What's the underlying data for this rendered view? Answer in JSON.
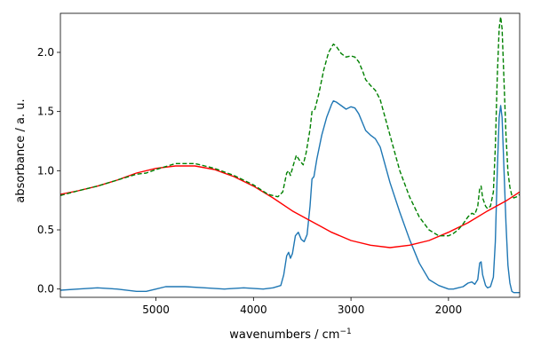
{
  "chart_data": {
    "type": "line",
    "xlabel": "wavenumbers / cm",
    "xlabel_sup": "−1",
    "ylabel": "absorbance / a. u.",
    "xlim": [
      5980,
      1270
    ],
    "ylim": [
      -0.07,
      2.33
    ],
    "x_ticks": [
      {
        "value": 5000,
        "label": "5000"
      },
      {
        "value": 4000,
        "label": "4000"
      },
      {
        "value": 3000,
        "label": "3000"
      },
      {
        "value": 2000,
        "label": "2000"
      }
    ],
    "y_ticks": [
      {
        "value": 0.0,
        "label": "0.0"
      },
      {
        "value": 0.5,
        "label": "0.5"
      },
      {
        "value": 1.0,
        "label": "1.0"
      },
      {
        "value": 1.5,
        "label": "1.5"
      },
      {
        "value": 2.0,
        "label": "2.0"
      }
    ],
    "grid": false,
    "series": [
      {
        "color": "#1f77b4",
        "style": "solid",
        "points": [
          [
            5980,
            -0.01
          ],
          [
            5800,
            0.0
          ],
          [
            5600,
            0.01
          ],
          [
            5400,
            0.0
          ],
          [
            5200,
            -0.02
          ],
          [
            5100,
            -0.02
          ],
          [
            5000,
            0.0
          ],
          [
            4900,
            0.02
          ],
          [
            4700,
            0.02
          ],
          [
            4500,
            0.01
          ],
          [
            4300,
            0.0
          ],
          [
            4100,
            0.01
          ],
          [
            3900,
            0.0
          ],
          [
            3800,
            0.01
          ],
          [
            3720,
            0.03
          ],
          [
            3690,
            0.12
          ],
          [
            3660,
            0.28
          ],
          [
            3640,
            0.31
          ],
          [
            3620,
            0.26
          ],
          [
            3600,
            0.3
          ],
          [
            3570,
            0.45
          ],
          [
            3540,
            0.48
          ],
          [
            3510,
            0.42
          ],
          [
            3480,
            0.4
          ],
          [
            3450,
            0.46
          ],
          [
            3420,
            0.7
          ],
          [
            3400,
            0.93
          ],
          [
            3380,
            0.95
          ],
          [
            3350,
            1.1
          ],
          [
            3300,
            1.3
          ],
          [
            3250,
            1.45
          ],
          [
            3200,
            1.56
          ],
          [
            3180,
            1.59
          ],
          [
            3150,
            1.58
          ],
          [
            3100,
            1.55
          ],
          [
            3050,
            1.52
          ],
          [
            3000,
            1.54
          ],
          [
            2960,
            1.53
          ],
          [
            2920,
            1.48
          ],
          [
            2880,
            1.4
          ],
          [
            2850,
            1.34
          ],
          [
            2800,
            1.3
          ],
          [
            2750,
            1.27
          ],
          [
            2700,
            1.2
          ],
          [
            2650,
            1.05
          ],
          [
            2600,
            0.9
          ],
          [
            2500,
            0.65
          ],
          [
            2400,
            0.42
          ],
          [
            2300,
            0.22
          ],
          [
            2200,
            0.08
          ],
          [
            2100,
            0.03
          ],
          [
            2000,
            0.0
          ],
          [
            1950,
            0.0
          ],
          [
            1900,
            0.01
          ],
          [
            1850,
            0.02
          ],
          [
            1800,
            0.05
          ],
          [
            1760,
            0.06
          ],
          [
            1730,
            0.04
          ],
          [
            1700,
            0.08
          ],
          [
            1680,
            0.22
          ],
          [
            1665,
            0.23
          ],
          [
            1650,
            0.12
          ],
          [
            1620,
            0.03
          ],
          [
            1600,
            0.01
          ],
          [
            1570,
            0.02
          ],
          [
            1540,
            0.1
          ],
          [
            1520,
            0.4
          ],
          [
            1500,
            1.0
          ],
          [
            1480,
            1.45
          ],
          [
            1465,
            1.55
          ],
          [
            1450,
            1.45
          ],
          [
            1430,
            1.0
          ],
          [
            1410,
            0.55
          ],
          [
            1390,
            0.2
          ],
          [
            1370,
            0.05
          ],
          [
            1350,
            -0.02
          ],
          [
            1330,
            -0.03
          ],
          [
            1300,
            -0.03
          ],
          [
            1270,
            -0.03
          ]
        ]
      },
      {
        "color": "#ff0000",
        "style": "solid",
        "points": [
          [
            5980,
            0.8
          ],
          [
            5800,
            0.83
          ],
          [
            5600,
            0.87
          ],
          [
            5400,
            0.92
          ],
          [
            5200,
            0.98
          ],
          [
            5000,
            1.02
          ],
          [
            4800,
            1.04
          ],
          [
            4600,
            1.04
          ],
          [
            4400,
            1.01
          ],
          [
            4200,
            0.95
          ],
          [
            4000,
            0.87
          ],
          [
            3800,
            0.77
          ],
          [
            3600,
            0.66
          ],
          [
            3400,
            0.57
          ],
          [
            3200,
            0.48
          ],
          [
            3000,
            0.41
          ],
          [
            2800,
            0.37
          ],
          [
            2600,
            0.35
          ],
          [
            2400,
            0.37
          ],
          [
            2200,
            0.41
          ],
          [
            2000,
            0.48
          ],
          [
            1800,
            0.56
          ],
          [
            1600,
            0.66
          ],
          [
            1400,
            0.75
          ],
          [
            1270,
            0.82
          ]
        ]
      },
      {
        "color": "#008000",
        "style": "dashed",
        "points": [
          [
            5980,
            0.79
          ],
          [
            5800,
            0.83
          ],
          [
            5600,
            0.87
          ],
          [
            5400,
            0.92
          ],
          [
            5200,
            0.97
          ],
          [
            5100,
            0.98
          ],
          [
            5000,
            1.01
          ],
          [
            4800,
            1.06
          ],
          [
            4600,
            1.06
          ],
          [
            4400,
            1.02
          ],
          [
            4200,
            0.96
          ],
          [
            4000,
            0.88
          ],
          [
            3850,
            0.8
          ],
          [
            3750,
            0.78
          ],
          [
            3700,
            0.82
          ],
          [
            3660,
            0.98
          ],
          [
            3640,
            1.0
          ],
          [
            3620,
            0.96
          ],
          [
            3590,
            1.05
          ],
          [
            3560,
            1.13
          ],
          [
            3530,
            1.09
          ],
          [
            3490,
            1.05
          ],
          [
            3460,
            1.15
          ],
          [
            3420,
            1.35
          ],
          [
            3400,
            1.5
          ],
          [
            3370,
            1.52
          ],
          [
            3330,
            1.65
          ],
          [
            3280,
            1.85
          ],
          [
            3230,
            2.0
          ],
          [
            3180,
            2.07
          ],
          [
            3150,
            2.05
          ],
          [
            3100,
            1.99
          ],
          [
            3050,
            1.96
          ],
          [
            3000,
            1.97
          ],
          [
            2960,
            1.96
          ],
          [
            2920,
            1.92
          ],
          [
            2880,
            1.84
          ],
          [
            2850,
            1.77
          ],
          [
            2800,
            1.72
          ],
          [
            2750,
            1.68
          ],
          [
            2700,
            1.6
          ],
          [
            2650,
            1.45
          ],
          [
            2600,
            1.3
          ],
          [
            2500,
            1.0
          ],
          [
            2400,
            0.78
          ],
          [
            2300,
            0.61
          ],
          [
            2200,
            0.5
          ],
          [
            2100,
            0.45
          ],
          [
            2000,
            0.45
          ],
          [
            1950,
            0.47
          ],
          [
            1900,
            0.5
          ],
          [
            1850,
            0.55
          ],
          [
            1800,
            0.61
          ],
          [
            1760,
            0.64
          ],
          [
            1730,
            0.63
          ],
          [
            1700,
            0.7
          ],
          [
            1680,
            0.85
          ],
          [
            1665,
            0.87
          ],
          [
            1650,
            0.77
          ],
          [
            1620,
            0.7
          ],
          [
            1600,
            0.68
          ],
          [
            1570,
            0.7
          ],
          [
            1540,
            0.82
          ],
          [
            1520,
            1.2
          ],
          [
            1500,
            1.8
          ],
          [
            1480,
            2.2
          ],
          [
            1465,
            2.3
          ],
          [
            1450,
            2.2
          ],
          [
            1430,
            1.75
          ],
          [
            1410,
            1.3
          ],
          [
            1390,
            0.99
          ],
          [
            1370,
            0.86
          ],
          [
            1350,
            0.79
          ],
          [
            1330,
            0.77
          ],
          [
            1300,
            0.78
          ],
          [
            1270,
            0.8
          ]
        ]
      }
    ]
  }
}
